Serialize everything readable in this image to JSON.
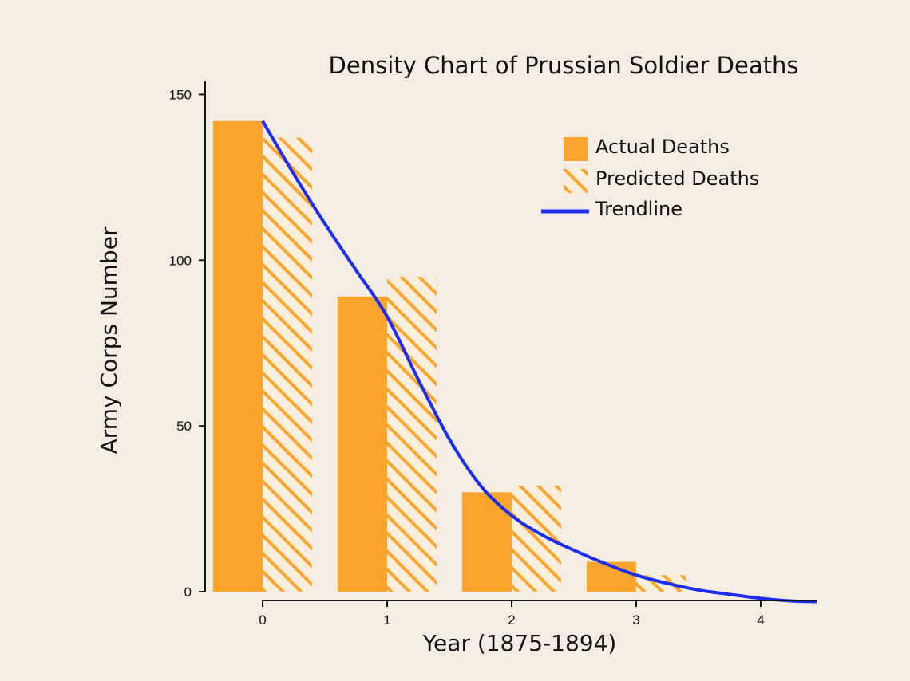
{
  "chart_data": {
    "type": "bar",
    "title": "Density Chart of Prussian Soldier Deaths",
    "xlabel": "Year (1875-1894)",
    "ylabel": "Army Corps Number",
    "categories": [
      "0",
      "1",
      "2",
      "3",
      "4"
    ],
    "x_ticks": [
      "0",
      "1",
      "2",
      "3",
      "4"
    ],
    "y_ticks": [
      "0",
      "50",
      "100",
      "150"
    ],
    "xlim": [
      -0.45,
      4.45
    ],
    "ylim": [
      0,
      154
    ],
    "series": [
      {
        "name": "Actual Deaths",
        "style": "solid",
        "x": [
          0,
          1,
          2,
          3
        ],
        "values": [
          142,
          89,
          30,
          9
        ]
      },
      {
        "name": "Predicted Deaths",
        "style": "hatched",
        "x": [
          0,
          1,
          2,
          3
        ],
        "values": [
          137,
          95,
          32,
          5
        ]
      }
    ],
    "trendline": {
      "name": "Trendline",
      "x": [
        0,
        0.25,
        0.5,
        0.75,
        1.0,
        1.25,
        1.5,
        1.75,
        2.0,
        2.25,
        2.5,
        2.75,
        3.0,
        3.25,
        3.5,
        3.75,
        4.0,
        4.25,
        4.45
      ],
      "values": [
        142,
        126,
        111,
        97,
        83,
        64,
        46,
        32,
        23,
        17,
        12.5,
        8.5,
        5,
        2.5,
        0.5,
        -0.8,
        -2,
        -2.8,
        -3
      ]
    },
    "legend_position": "top-right",
    "grid": false,
    "colors": {
      "bar": "#fba52c",
      "trendline": "#1b2ef0",
      "axis": "#111111",
      "background": "#f5ede3"
    }
  }
}
